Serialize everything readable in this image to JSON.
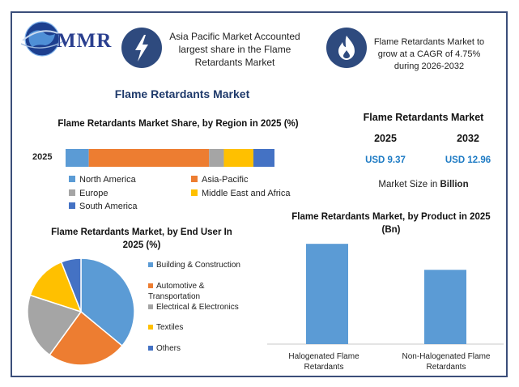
{
  "header": {
    "logo_text": "MMR",
    "banner_left": "Asia Pacific Market Accounted largest share in the Flame Retardants Market",
    "banner_right": "Flame Retardants Market to grow at a CAGR of 4.75% during 2026-2032",
    "icons": [
      "lightning-icon",
      "flame-icon"
    ]
  },
  "main_title": "Flame Retardants Market",
  "kpi": {
    "title": "Flame Retardants Market",
    "year_a": "2025",
    "year_b": "2032",
    "value_a": "USD 9.37",
    "value_b": "USD 12.96",
    "note_prefix": "Market Size in ",
    "note_unit": "Billion"
  },
  "colors": {
    "north_america": "#5b9bd5",
    "asia_pacific": "#ed7d31",
    "europe": "#a5a5a5",
    "middle_east_africa": "#ffc000",
    "south_america": "#4472c4",
    "brand": "#2e4a7e",
    "value_blue": "#1e7bc4"
  },
  "chart_data": [
    {
      "type": "bar",
      "orientation": "horizontal-stacked",
      "title": "Flame Retardants Market Share, by Region in 2025 (%)",
      "categories": [
        "2025"
      ],
      "series": [
        {
          "name": "North America",
          "values": [
            11
          ]
        },
        {
          "name": "Asia-Pacific",
          "values": [
            57
          ]
        },
        {
          "name": "Europe",
          "values": [
            7
          ]
        },
        {
          "name": "Middle East and Africa",
          "values": [
            14
          ]
        },
        {
          "name": "South America",
          "values": [
            10
          ]
        }
      ],
      "legend": "bottom"
    },
    {
      "type": "pie",
      "title": "Flame Retardants Market, by End User In 2025 (%)",
      "labels": [
        "Building & Construction",
        "Automotive & Transportation",
        "Electrical & Electronics",
        "Textiles",
        "Others"
      ],
      "values": [
        36,
        24,
        20,
        14,
        6
      ],
      "legend": "right"
    },
    {
      "type": "bar",
      "title": "Flame Retardants Market, by Product in 2025 (Bn)",
      "categories": [
        "Halogenated Flame Retardants",
        "Non-Halogenated Flame Retardants"
      ],
      "values": [
        5.4,
        4.0
      ],
      "ylim": [
        0,
        5.8
      ]
    }
  ]
}
